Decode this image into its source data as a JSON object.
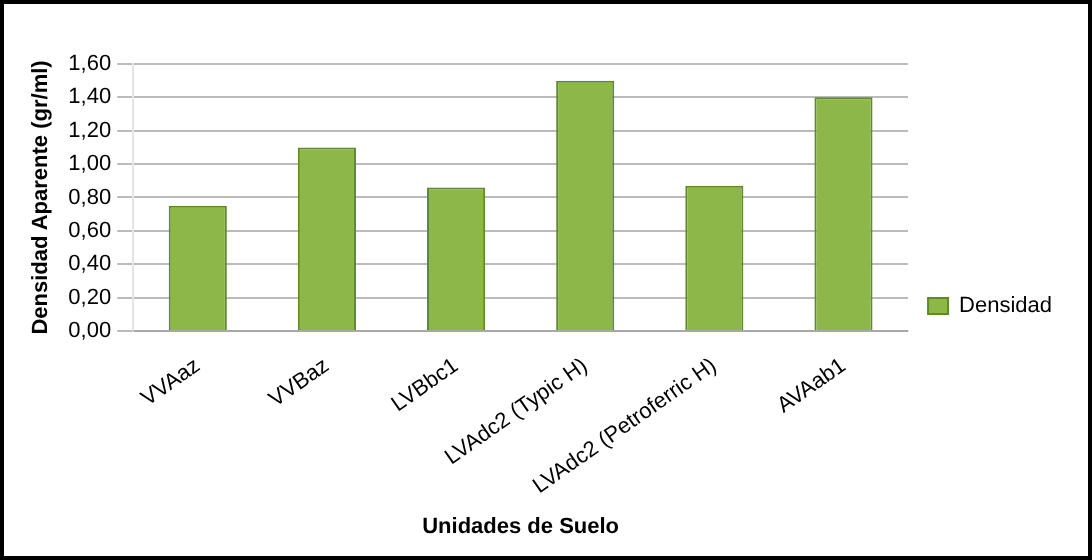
{
  "chart_data": {
    "type": "bar",
    "xlabel": "Unidades de Suelo",
    "ylabel": "Densidad Aparente (gr/ml)",
    "categories": [
      "VVAaz",
      "VVBaz",
      "LVBbc1",
      "LVAdc2 (Typic H)",
      "LVAdc2 (Petroferric H)",
      "AVAab1"
    ],
    "series": [
      {
        "name": "Densidad",
        "color": "#8db849",
        "values": [
          0.75,
          1.1,
          0.86,
          1.5,
          0.87,
          1.4
        ]
      }
    ],
    "ylim": [
      0,
      1.6
    ],
    "yticks": [
      {
        "value": 0,
        "label": "0,00"
      },
      {
        "value": 0.2,
        "label": "0,20"
      },
      {
        "value": 0.4,
        "label": "0,40"
      },
      {
        "value": 0.6,
        "label": "0,60"
      },
      {
        "value": 0.8,
        "label": "0,80"
      },
      {
        "value": 1,
        "label": "1,00"
      },
      {
        "value": 1.2,
        "label": "1,20"
      },
      {
        "value": 1.4,
        "label": "1,40"
      },
      {
        "value": 1.6,
        "label": "1,60"
      }
    ],
    "grid": "y",
    "legend": "right"
  }
}
